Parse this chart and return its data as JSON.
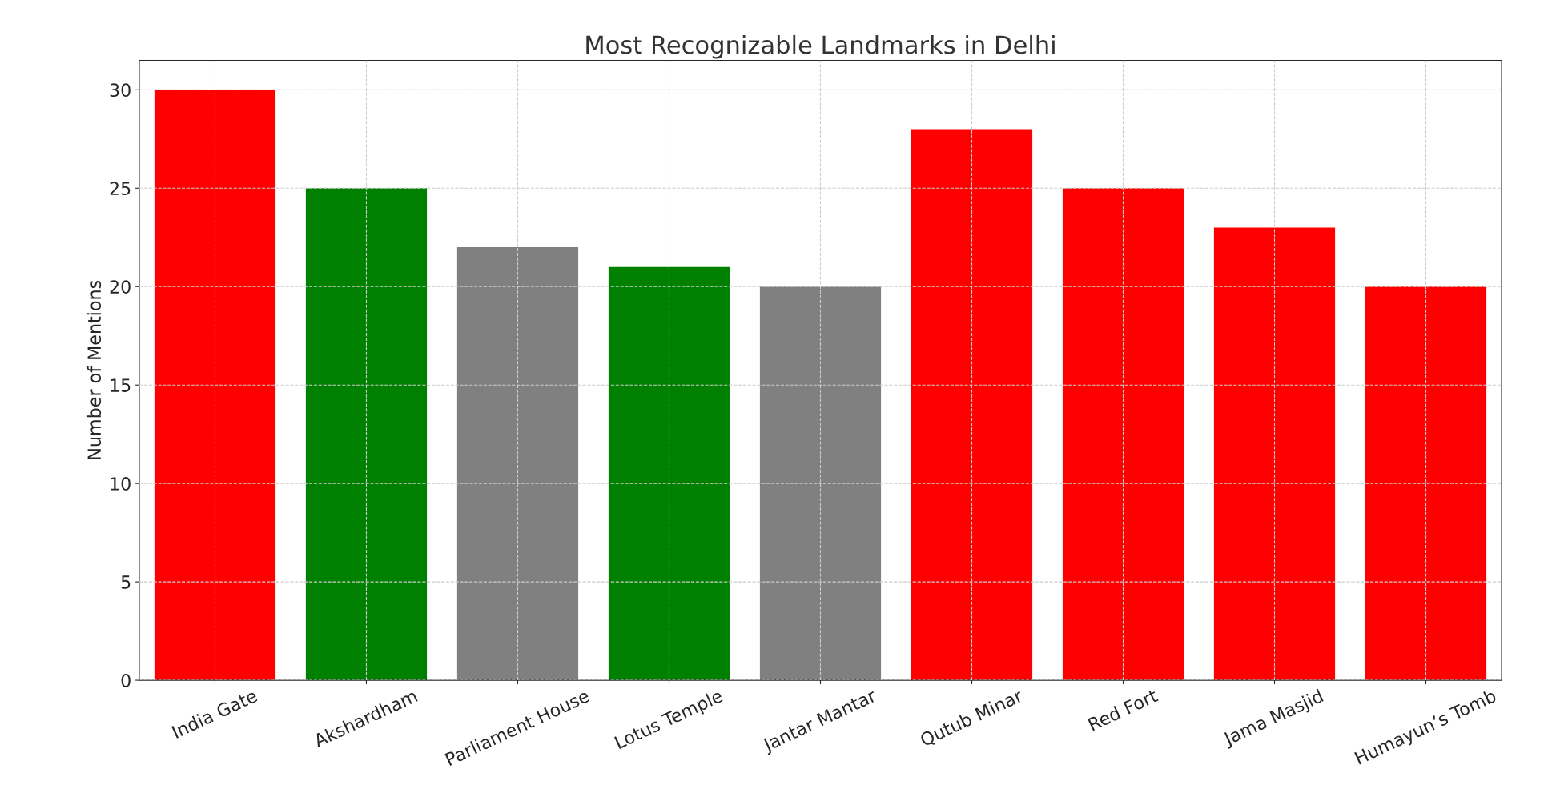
{
  "chart_data": {
    "type": "bar",
    "title": "Most Recognizable Landmarks in Delhi",
    "ylabel": "Number of Mentions",
    "categories": [
      "India Gate",
      "Akshardham",
      "Parliament House",
      "Lotus Temple",
      "Jantar Mantar",
      "Qutub Minar",
      "Red Fort",
      "Jama Masjid",
      "Humayun’s Tomb"
    ],
    "values": [
      30,
      25,
      22,
      21,
      20,
      28,
      25,
      23,
      20
    ],
    "colors": [
      "#ff0000",
      "#008000",
      "#808080",
      "#008000",
      "#808080",
      "#ff0000",
      "#ff0000",
      "#ff0000",
      "#ff0000"
    ],
    "ylim": [
      0,
      31.5
    ],
    "yticks": [
      0,
      5,
      10,
      15,
      20,
      25,
      30
    ],
    "grid": true
  }
}
